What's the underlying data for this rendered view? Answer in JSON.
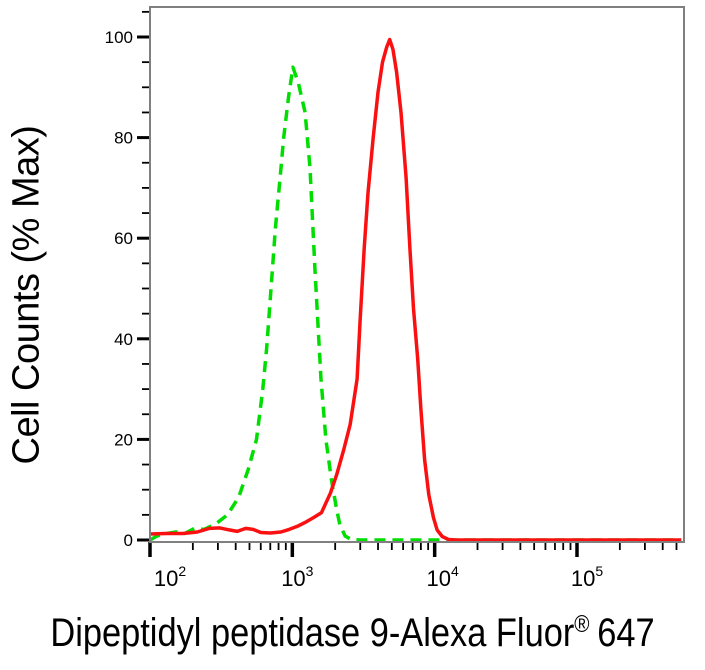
{
  "figure": {
    "ylabel": "Cell Counts (% Max)",
    "xlabel_before_reg": "Dipeptidyl peptidase 9-Alexa Fluor",
    "xlabel_reg": "®",
    "xlabel_after_reg": "647"
  },
  "chart_data": {
    "type": "line",
    "subtype": "flow-cytometry-histogram",
    "title": "",
    "xlabel": "Dipeptidyl peptidase 9-Alexa Fluor® 647",
    "ylabel": "Cell Counts (% Max)",
    "xscale": "log",
    "xlim": [
      100,
      550000
    ],
    "ylim": [
      0,
      100
    ],
    "grid": false,
    "legend": "none",
    "frame": true,
    "colors": {
      "frame": "#808080",
      "ticks": "#000000",
      "text": "#000000"
    },
    "x_major_ticks": [
      {
        "base": "10",
        "exp": "2",
        "value": 100
      },
      {
        "base": "10",
        "exp": "3",
        "value": 1000
      },
      {
        "base": "10",
        "exp": "4",
        "value": 10000
      },
      {
        "base": "10",
        "exp": "5",
        "value": 100000
      }
    ],
    "y_major_ticks": [
      {
        "label": "0",
        "value": 0
      },
      {
        "label": "20",
        "value": 20
      },
      {
        "label": "40",
        "value": 40
      },
      {
        "label": "60",
        "value": 60
      },
      {
        "label": "80",
        "value": 80
      },
      {
        "label": "100",
        "value": 100
      }
    ],
    "y_minor_step": 5,
    "series": [
      {
        "name": "green-dashed-control",
        "color": "#00dd00",
        "line_style": "dashed",
        "points": [
          [
            100,
            0
          ],
          [
            112,
            0.8
          ],
          [
            130,
            1.3
          ],
          [
            152,
            1.6
          ],
          [
            175,
            1.3
          ],
          [
            205,
            2.3
          ],
          [
            240,
            2.1
          ],
          [
            290,
            3.2
          ],
          [
            350,
            5
          ],
          [
            420,
            8.5
          ],
          [
            490,
            14
          ],
          [
            560,
            20
          ],
          [
            620,
            30
          ],
          [
            660,
            38
          ],
          [
            700,
            48
          ],
          [
            760,
            62
          ],
          [
            820,
            72
          ],
          [
            870,
            80
          ],
          [
            940,
            88
          ],
          [
            1010,
            94
          ],
          [
            1100,
            91
          ],
          [
            1230,
            85
          ],
          [
            1330,
            74
          ],
          [
            1440,
            54
          ],
          [
            1520,
            42
          ],
          [
            1590,
            32
          ],
          [
            1720,
            20
          ],
          [
            1880,
            12
          ],
          [
            2050,
            6
          ],
          [
            2160,
            3
          ],
          [
            2350,
            0.8
          ],
          [
            2600,
            0.1
          ],
          [
            3000,
            0
          ],
          [
            5000,
            0
          ],
          [
            10000,
            0
          ],
          [
            30000,
            0
          ],
          [
            100000,
            0
          ],
          [
            300000,
            0
          ],
          [
            540000,
            0
          ]
        ]
      },
      {
        "name": "red-solid-sample",
        "color": "#fa1010",
        "line_style": "solid",
        "points": [
          [
            100,
            1.2
          ],
          [
            130,
            1.3
          ],
          [
            170,
            1.3
          ],
          [
            215,
            1.6
          ],
          [
            260,
            2.3
          ],
          [
            310,
            2.4
          ],
          [
            360,
            2.0
          ],
          [
            410,
            1.7
          ],
          [
            470,
            2.3
          ],
          [
            530,
            2.1
          ],
          [
            600,
            1.5
          ],
          [
            700,
            1.4
          ],
          [
            830,
            1.6
          ],
          [
            950,
            2.1
          ],
          [
            1080,
            2.7
          ],
          [
            1250,
            3.6
          ],
          [
            1400,
            4.4
          ],
          [
            1600,
            5.4
          ],
          [
            1850,
            9.3
          ],
          [
            2050,
            13
          ],
          [
            2300,
            18
          ],
          [
            2550,
            23
          ],
          [
            2850,
            32
          ],
          [
            3000,
            44
          ],
          [
            3200,
            58
          ],
          [
            3400,
            69
          ],
          [
            3700,
            80
          ],
          [
            4000,
            89
          ],
          [
            4300,
            95
          ],
          [
            4600,
            98
          ],
          [
            4830,
            99.5
          ],
          [
            5100,
            97.5
          ],
          [
            5400,
            93
          ],
          [
            5800,
            85
          ],
          [
            6300,
            72
          ],
          [
            6700,
            58
          ],
          [
            7100,
            46
          ],
          [
            7600,
            36
          ],
          [
            8000,
            26
          ],
          [
            8500,
            16
          ],
          [
            9100,
            9
          ],
          [
            9800,
            4.5
          ],
          [
            10400,
            2
          ],
          [
            11300,
            0.7
          ],
          [
            12500,
            0.1
          ],
          [
            14000,
            0
          ],
          [
            30000,
            0
          ],
          [
            100000,
            0
          ],
          [
            300000,
            0
          ],
          [
            540000,
            0
          ]
        ]
      }
    ]
  }
}
